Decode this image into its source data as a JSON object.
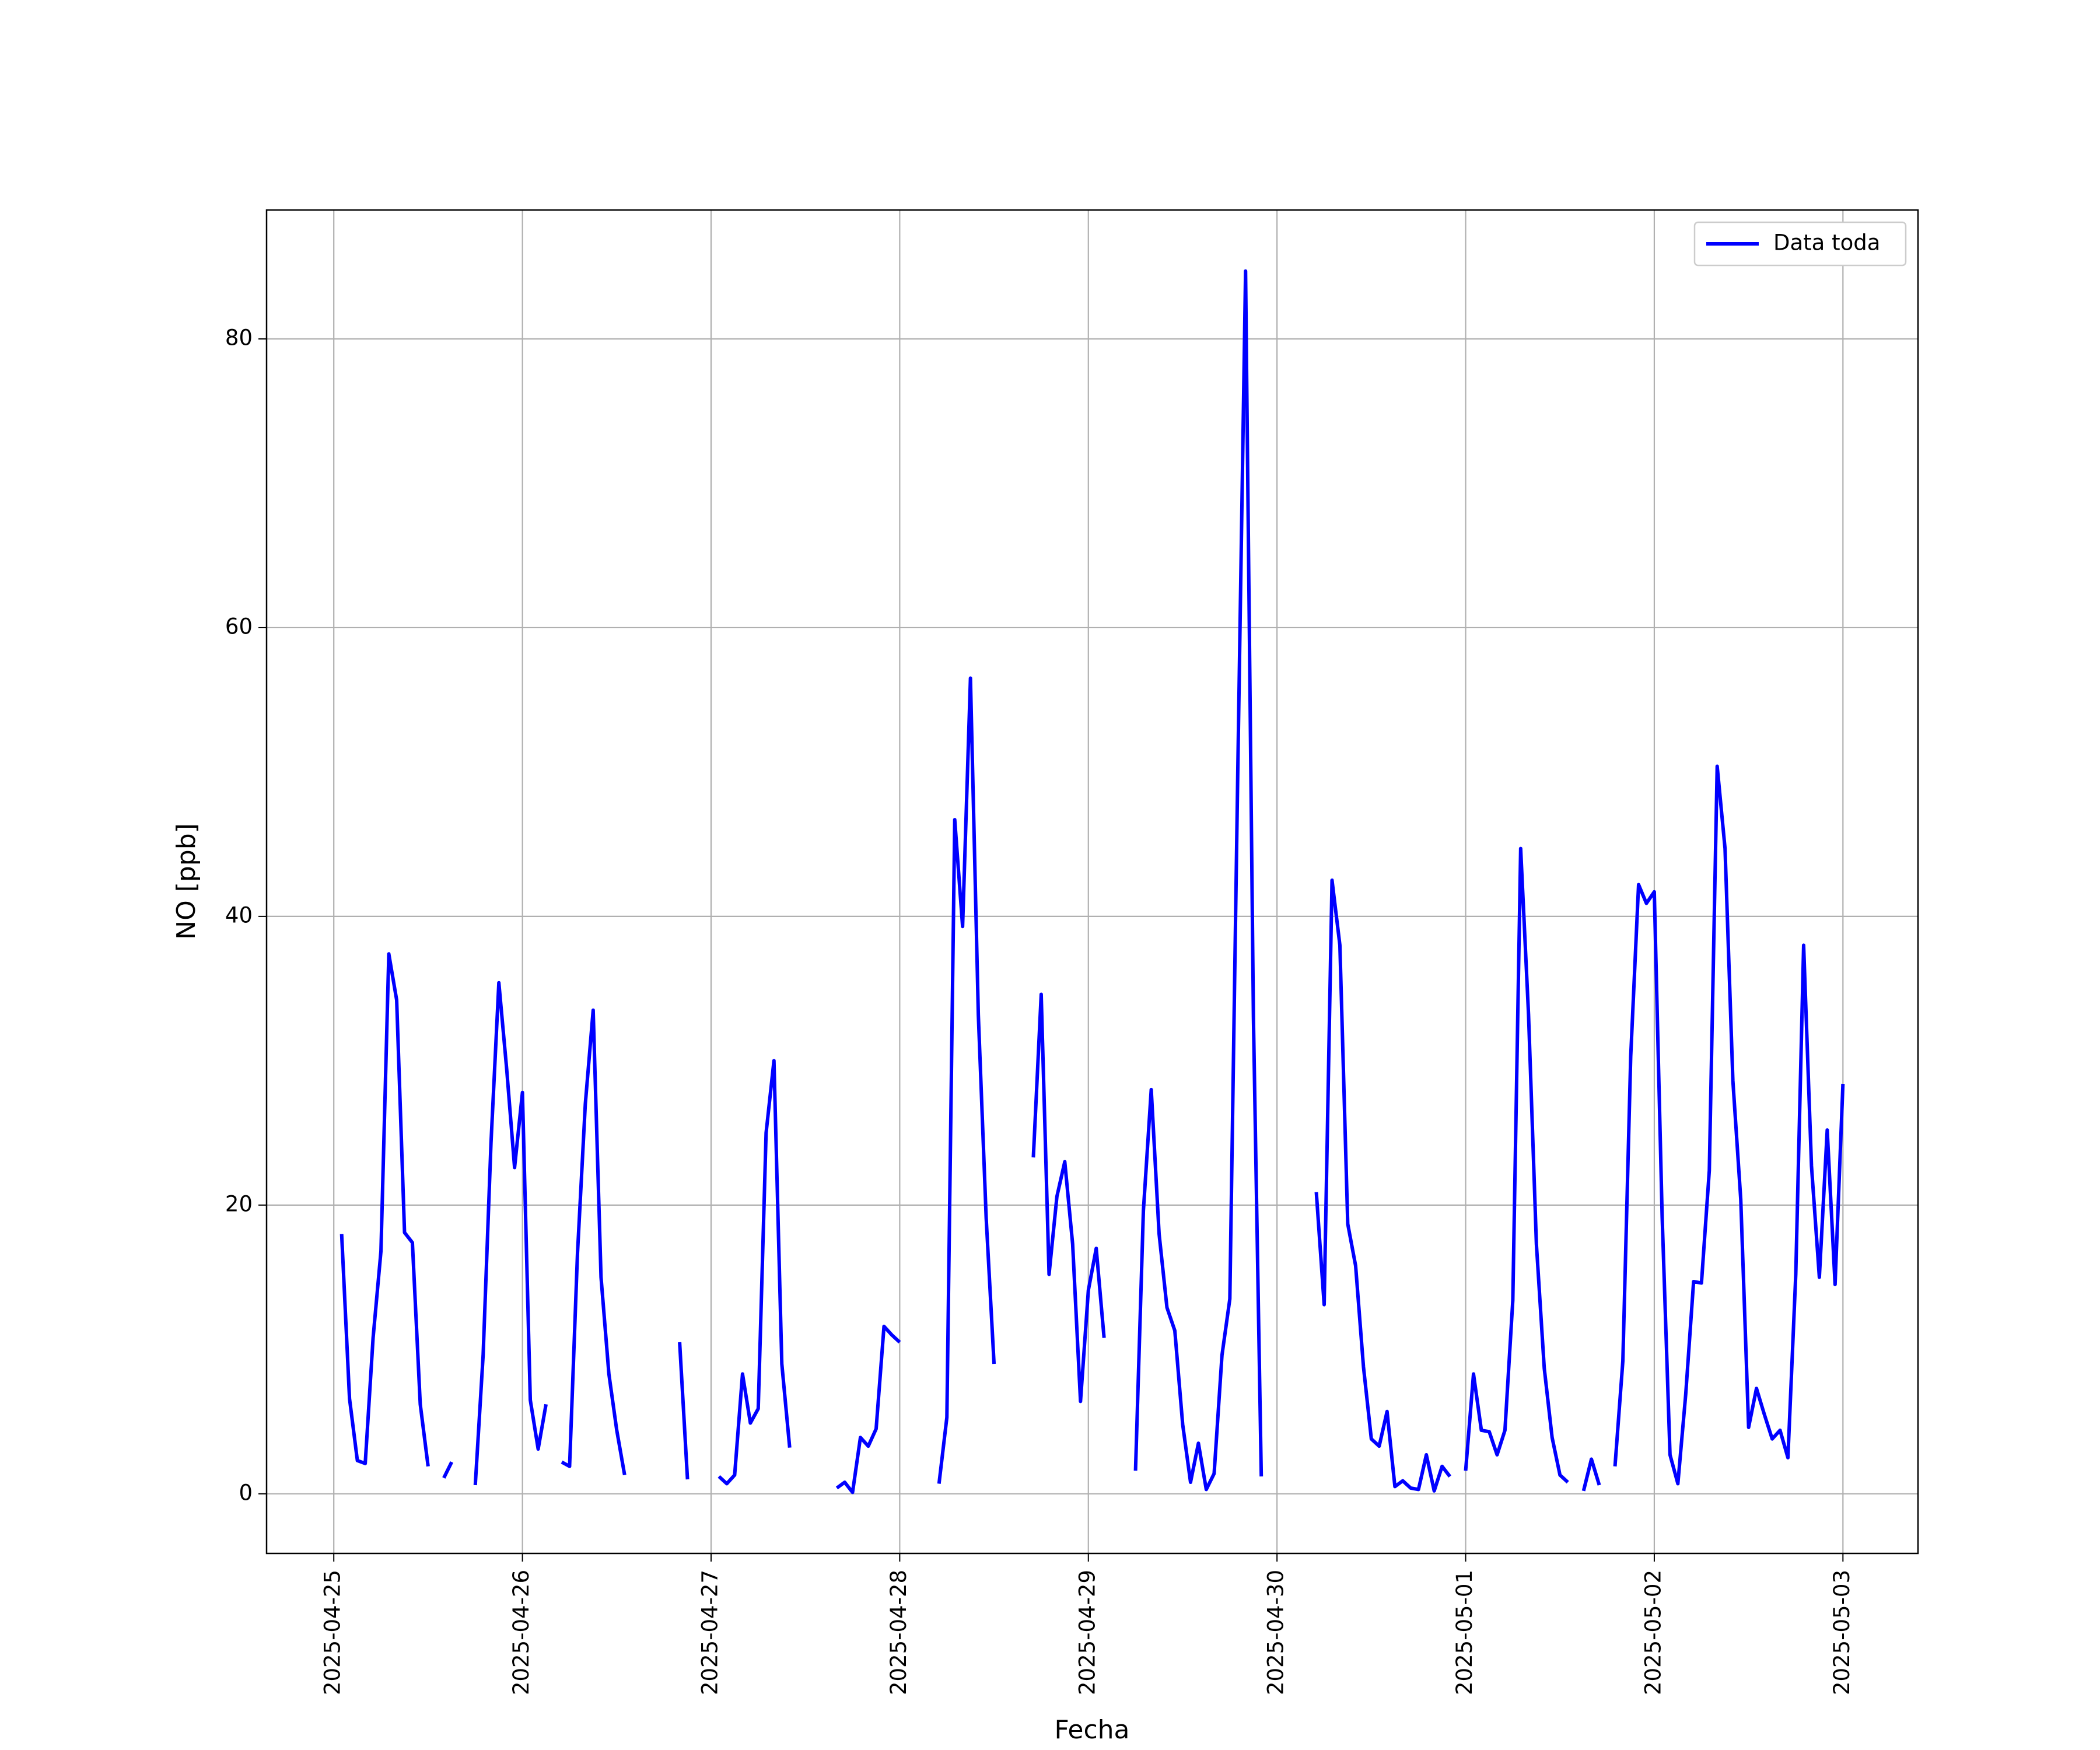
{
  "chart_data": {
    "type": "line",
    "xlabel": "Fecha",
    "ylabel": "NO [ppb]",
    "x": [
      "2025-04-25 01:00",
      "2025-04-25 02:00",
      "2025-04-25 03:00",
      "2025-04-25 04:00",
      "2025-04-25 05:00",
      "2025-04-25 06:00",
      "2025-04-25 07:00",
      "2025-04-25 08:00",
      "2025-04-25 09:00",
      "2025-04-25 10:00",
      "2025-04-25 11:00",
      "2025-04-25 12:00",
      "2025-04-25 13:00",
      "2025-04-25 14:00",
      "2025-04-25 15:00",
      "2025-04-25 16:00",
      "2025-04-25 18:00",
      "2025-04-25 19:00",
      "2025-04-25 20:00",
      "2025-04-25 21:00",
      "2025-04-25 22:00",
      "2025-04-25 23:00",
      "2025-04-26 00:00",
      "2025-04-26 01:00",
      "2025-04-26 02:00",
      "2025-04-26 03:00",
      "2025-04-26 04:00",
      "2025-04-26 05:00",
      "2025-04-26 06:00",
      "2025-04-26 07:00",
      "2025-04-26 08:00",
      "2025-04-26 09:00",
      "2025-04-26 10:00",
      "2025-04-26 11:00",
      "2025-04-26 12:00",
      "2025-04-26 13:00",
      "2025-04-26 14:00",
      "2025-04-26 20:00",
      "2025-04-26 21:00",
      "2025-04-26 22:00",
      "2025-04-27 01:00",
      "2025-04-27 02:00",
      "2025-04-27 03:00",
      "2025-04-27 04:00",
      "2025-04-27 05:00",
      "2025-04-27 06:00",
      "2025-04-27 07:00",
      "2025-04-27 08:00",
      "2025-04-27 09:00",
      "2025-04-27 10:00",
      "2025-04-27 11:00",
      "2025-04-27 16:00",
      "2025-04-27 17:00",
      "2025-04-27 18:00",
      "2025-04-27 19:00",
      "2025-04-27 20:00",
      "2025-04-27 21:00",
      "2025-04-27 22:00",
      "2025-04-27 23:00",
      "2025-04-28 00:00",
      "2025-04-28 01:00",
      "2025-04-28 05:00",
      "2025-04-28 06:00",
      "2025-04-28 07:00",
      "2025-04-28 08:00",
      "2025-04-28 09:00",
      "2025-04-28 10:00",
      "2025-04-28 11:00",
      "2025-04-28 12:00",
      "2025-04-28 13:00",
      "2025-04-28 17:00",
      "2025-04-28 18:00",
      "2025-04-28 19:00",
      "2025-04-28 20:00",
      "2025-04-28 21:00",
      "2025-04-28 22:00",
      "2025-04-28 23:00",
      "2025-04-29 00:00",
      "2025-04-29 01:00",
      "2025-04-29 02:00",
      "2025-04-29 03:00",
      "2025-04-29 06:00",
      "2025-04-29 07:00",
      "2025-04-29 08:00",
      "2025-04-29 09:00",
      "2025-04-29 10:00",
      "2025-04-29 11:00",
      "2025-04-29 12:00",
      "2025-04-29 13:00",
      "2025-04-29 14:00",
      "2025-04-29 15:00",
      "2025-04-29 16:00",
      "2025-04-29 17:00",
      "2025-04-29 18:00",
      "2025-04-29 19:00",
      "2025-04-29 20:00",
      "2025-04-29 21:00",
      "2025-04-29 22:00",
      "2025-04-29 23:00",
      "2025-04-30 05:00",
      "2025-04-30 06:00",
      "2025-04-30 07:00",
      "2025-04-30 08:00",
      "2025-04-30 09:00",
      "2025-04-30 10:00",
      "2025-04-30 11:00",
      "2025-04-30 12:00",
      "2025-04-30 13:00",
      "2025-04-30 14:00",
      "2025-04-30 15:00",
      "2025-04-30 16:00",
      "2025-04-30 17:00",
      "2025-04-30 18:00",
      "2025-04-30 19:00",
      "2025-04-30 20:00",
      "2025-04-30 21:00",
      "2025-04-30 22:00",
      "2025-04-30 23:00",
      "2025-05-01 00:00",
      "2025-05-01 01:00",
      "2025-05-01 02:00",
      "2025-05-01 03:00",
      "2025-05-01 04:00",
      "2025-05-01 05:00",
      "2025-05-01 06:00",
      "2025-05-01 07:00",
      "2025-05-01 08:00",
      "2025-05-01 09:00",
      "2025-05-01 10:00",
      "2025-05-01 11:00",
      "2025-05-01 12:00",
      "2025-05-01 13:00",
      "2025-05-01 14:00",
      "2025-05-01 15:00",
      "2025-05-01 16:00",
      "2025-05-01 17:00",
      "2025-05-01 18:00",
      "2025-05-01 19:00",
      "2025-05-01 20:00",
      "2025-05-01 21:00",
      "2025-05-01 22:00",
      "2025-05-01 23:00",
      "2025-05-02 00:00",
      "2025-05-02 01:00",
      "2025-05-02 02:00",
      "2025-05-02 03:00",
      "2025-05-02 04:00",
      "2025-05-02 05:00",
      "2025-05-02 06:00",
      "2025-05-02 07:00",
      "2025-05-02 08:00",
      "2025-05-02 09:00",
      "2025-05-02 10:00",
      "2025-05-02 11:00",
      "2025-05-02 12:00",
      "2025-05-02 13:00",
      "2025-05-02 14:00",
      "2025-05-02 15:00",
      "2025-05-02 16:00",
      "2025-05-02 17:00",
      "2025-05-02 18:00",
      "2025-05-02 19:00",
      "2025-05-02 20:00",
      "2025-05-02 21:00",
      "2025-05-02 22:00",
      "2025-05-02 23:00",
      "2025-05-03 00:00"
    ],
    "series": [
      {
        "name": "Data toda",
        "color": "#0000ff",
        "values": [
          18,
          6.6,
          2.3,
          2.1,
          10.8,
          16.8,
          37.4,
          34.2,
          18.1,
          17.4,
          6.2,
          1.9,
          null,
          1.1,
          2.2,
          null,
          0.6,
          9.6,
          24.3,
          35.4,
          29.4,
          22.6,
          27.8,
          6.5,
          3.1,
          6.2,
          null,
          2.2,
          1.9,
          16.6,
          27,
          33.5,
          15,
          8.3,
          4.4,
          1.3,
          null,
          10.5,
          1.0,
          null,
          1.2,
          0.7,
          1.3,
          8.3,
          4.9,
          5.9,
          25,
          30,
          9,
          3.2,
          null,
          0.4,
          0.8,
          0.1,
          3.9,
          3.3,
          4.5,
          11.6,
          11,
          10.5,
          null,
          0.7,
          5.3,
          46.7,
          39.3,
          56.5,
          33.2,
          19.1,
          9,
          null,
          23.3,
          34.6,
          15.2,
          20.6,
          23,
          17.3,
          6.4,
          14.1,
          17,
          10.8,
          null,
          1.6,
          19.6,
          28,
          18,
          12.9,
          11.3,
          4.8,
          0.8,
          3.5,
          0.3,
          1.4,
          9.6,
          13.5,
          49.7,
          84.7,
          33,
          1.2,
          null,
          20.9,
          13.1,
          42.5,
          38,
          18.7,
          15.8,
          8.8,
          3.8,
          3.3,
          5.7,
          0.5,
          0.9,
          0.4,
          0.3,
          2.7,
          0.2,
          1.9,
          1.2,
          null,
          1.6,
          8.3,
          4.4,
          4.3,
          2.7,
          4.4,
          13.4,
          44.7,
          33.2,
          17.3,
          8.7,
          3.9,
          1.3,
          0.8,
          null,
          0.2,
          2.4,
          0.6,
          null,
          1.9,
          9.2,
          30.3,
          42.2,
          40.9,
          41.7,
          19.2,
          2.7,
          0.7,
          6.9,
          14.7,
          14.6,
          22.4,
          50.4,
          44.7,
          28.6,
          20.4,
          4.6,
          7.3,
          5.5,
          3.8,
          4.4,
          2.5,
          15.2,
          38,
          22.7,
          15,
          25.2,
          14.5,
          28.4
        ]
      }
    ],
    "xlim": [
      "2025-04-24 15:27",
      "2025-05-03 09:33"
    ],
    "xticks": [
      "2025-04-25",
      "2025-04-26",
      "2025-04-27",
      "2025-04-28",
      "2025-04-29",
      "2025-04-30",
      "2025-05-01",
      "2025-05-02",
      "2025-05-03"
    ],
    "ylim": [
      -4.13,
      88.93
    ],
    "yticks": [
      0,
      20,
      40,
      60,
      80
    ],
    "grid": true,
    "legend": "upper right"
  }
}
